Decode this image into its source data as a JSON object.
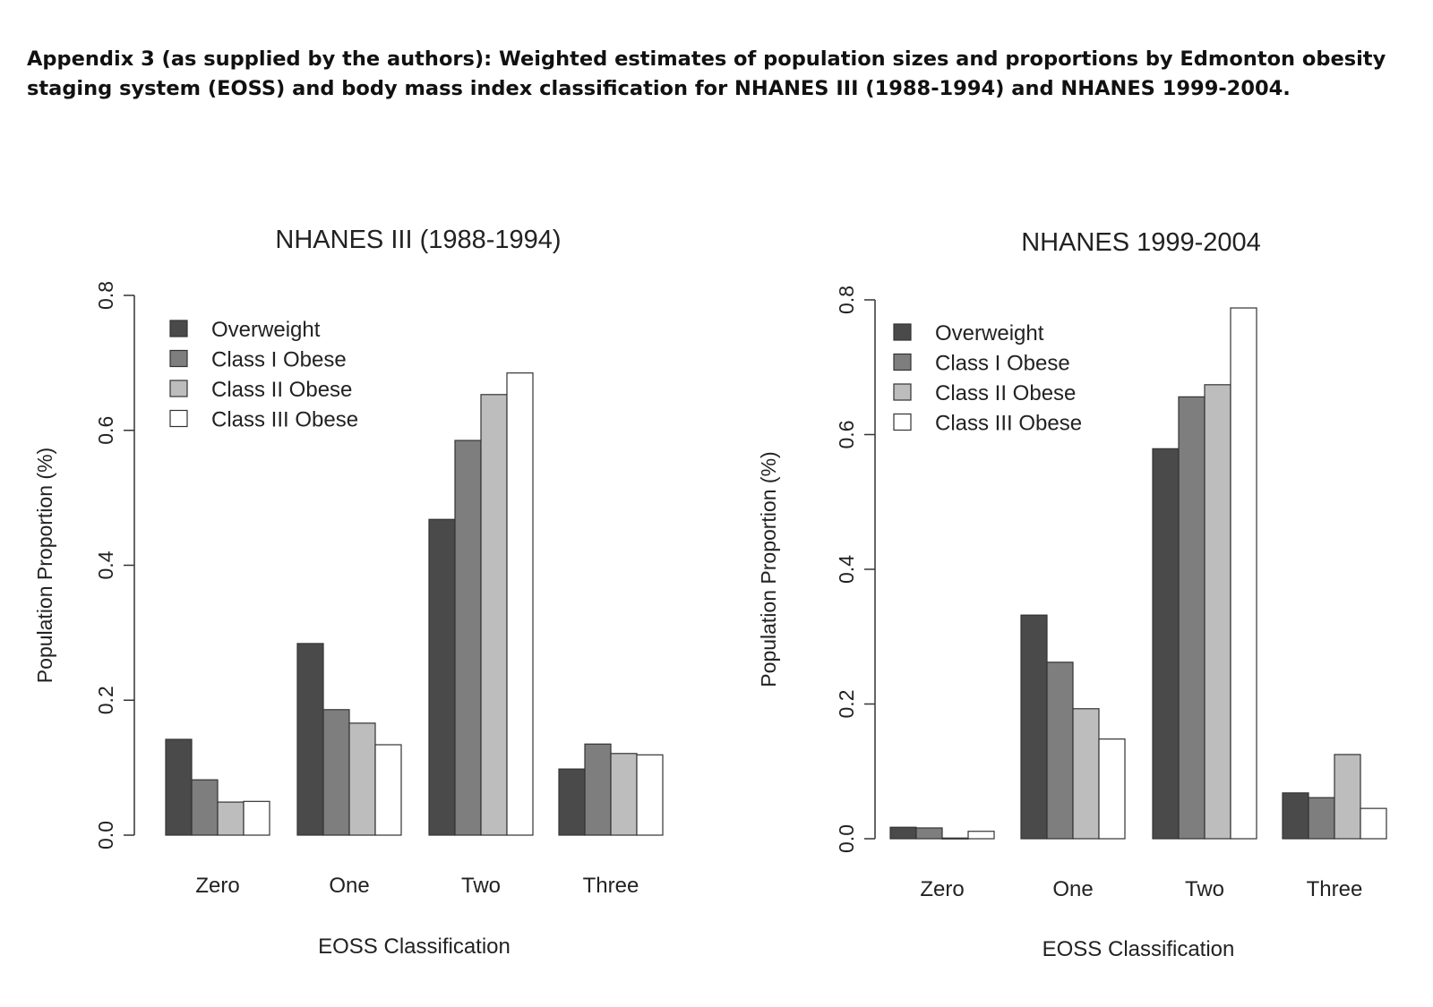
{
  "caption": "Appendix 3 (as supplied by the authors): Weighted estimates of population sizes and proportions by Edmonton obesity staging system (EOSS) and body mass index classification for NHANES III (1988-1994) and NHANES 1999-2004.",
  "colors": {
    "Overweight": "#4a4a4a",
    "Class I Obese": "#7e7e7e",
    "Class II Obese": "#bdbdbd",
    "Class III Obese": "#ffffff"
  },
  "chart_data": [
    {
      "type": "bar",
      "title": "NHANES III (1988-1994)",
      "xlabel": "EOSS Classification",
      "ylabel": "Population Proportion (%)",
      "ylim": [
        0,
        0.8
      ],
      "yticks": [
        "0.0",
        "0.2",
        "0.4",
        "0.6",
        "0.8"
      ],
      "categories": [
        "Zero",
        "One",
        "Two",
        "Three"
      ],
      "legend_position": "top-left",
      "grid": false,
      "series": [
        {
          "name": "Overweight",
          "values": [
            0.142,
            0.284,
            0.468,
            0.098
          ]
        },
        {
          "name": "Class I Obese",
          "values": [
            0.082,
            0.186,
            0.585,
            0.135
          ]
        },
        {
          "name": "Class II Obese",
          "values": [
            0.049,
            0.166,
            0.653,
            0.121
          ]
        },
        {
          "name": "Class III Obese",
          "values": [
            0.05,
            0.134,
            0.685,
            0.119
          ]
        }
      ]
    },
    {
      "type": "bar",
      "title": "NHANES 1999-2004",
      "xlabel": "EOSS Classification",
      "ylabel": "Population Proportion (%)",
      "ylim": [
        0,
        0.8
      ],
      "yticks": [
        "0.0",
        "0.2",
        "0.4",
        "0.6",
        "0.8"
      ],
      "categories": [
        "Zero",
        "One",
        "Two",
        "Three"
      ],
      "legend_position": "top-left",
      "grid": false,
      "series": [
        {
          "name": "Overweight",
          "values": [
            0.017,
            0.332,
            0.579,
            0.068
          ]
        },
        {
          "name": "Class I Obese",
          "values": [
            0.016,
            0.262,
            0.656,
            0.061
          ]
        },
        {
          "name": "Class II Obese",
          "values": [
            0.001,
            0.193,
            0.674,
            0.125
          ]
        },
        {
          "name": "Class III Obese",
          "values": [
            0.011,
            0.148,
            0.788,
            0.045
          ]
        }
      ]
    }
  ]
}
